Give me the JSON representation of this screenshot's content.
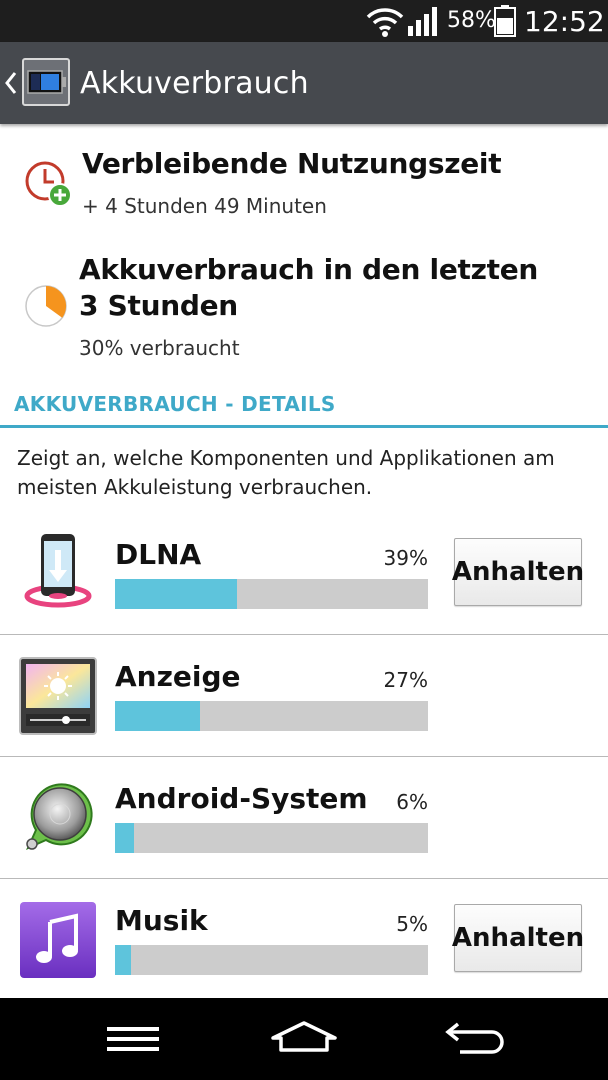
{
  "status_bar": {
    "battery_percent": "58%",
    "time": "12:52",
    "icons": [
      "wifi-icon",
      "signal-icon",
      "battery-icon"
    ]
  },
  "action_bar": {
    "title": "Akkuverbrauch",
    "icons": [
      "back-chevron-icon",
      "battery-app-icon"
    ]
  },
  "summary": {
    "remaining": {
      "title": "Verbleibende Nutzungszeit",
      "value": "+ 4 Stunden 49 Minuten",
      "icon": "clock-plus-icon"
    },
    "recent": {
      "title": "Akkuverbrauch in den letzten 3 Stunden",
      "value": "30% verbraucht",
      "icon": "pie-usage-icon",
      "used_fraction": 0.3
    }
  },
  "details": {
    "header": "AKKUVERBRAUCH - DETAILS",
    "description": "Zeigt an, welche Komponenten und Applikationen am meisten Akkuleistung verbrauchen."
  },
  "apps": [
    {
      "name": "DLNA",
      "percent_label": "39%",
      "percent": 39,
      "icon": "dlna-phone-icon",
      "stop_label": "Anhalten"
    },
    {
      "name": "Anzeige",
      "percent_label": "27%",
      "percent": 27,
      "icon": "display-brightness-icon",
      "stop_label": ""
    },
    {
      "name": "Android-System",
      "percent_label": "6%",
      "percent": 6,
      "icon": "android-system-icon",
      "stop_label": ""
    },
    {
      "name": "Musik",
      "percent_label": "5%",
      "percent": 5,
      "icon": "music-note-icon",
      "stop_label": "Anhalten"
    }
  ],
  "nav_bar": {
    "buttons": [
      "menu-icon",
      "home-icon",
      "back-icon"
    ]
  },
  "colors": {
    "accent": "#3fa9c8",
    "bar_fill": "#5ec4dc",
    "bar_track": "#cccccc",
    "action_bar": "#46494e",
    "status_bar": "#1e1e1e"
  }
}
